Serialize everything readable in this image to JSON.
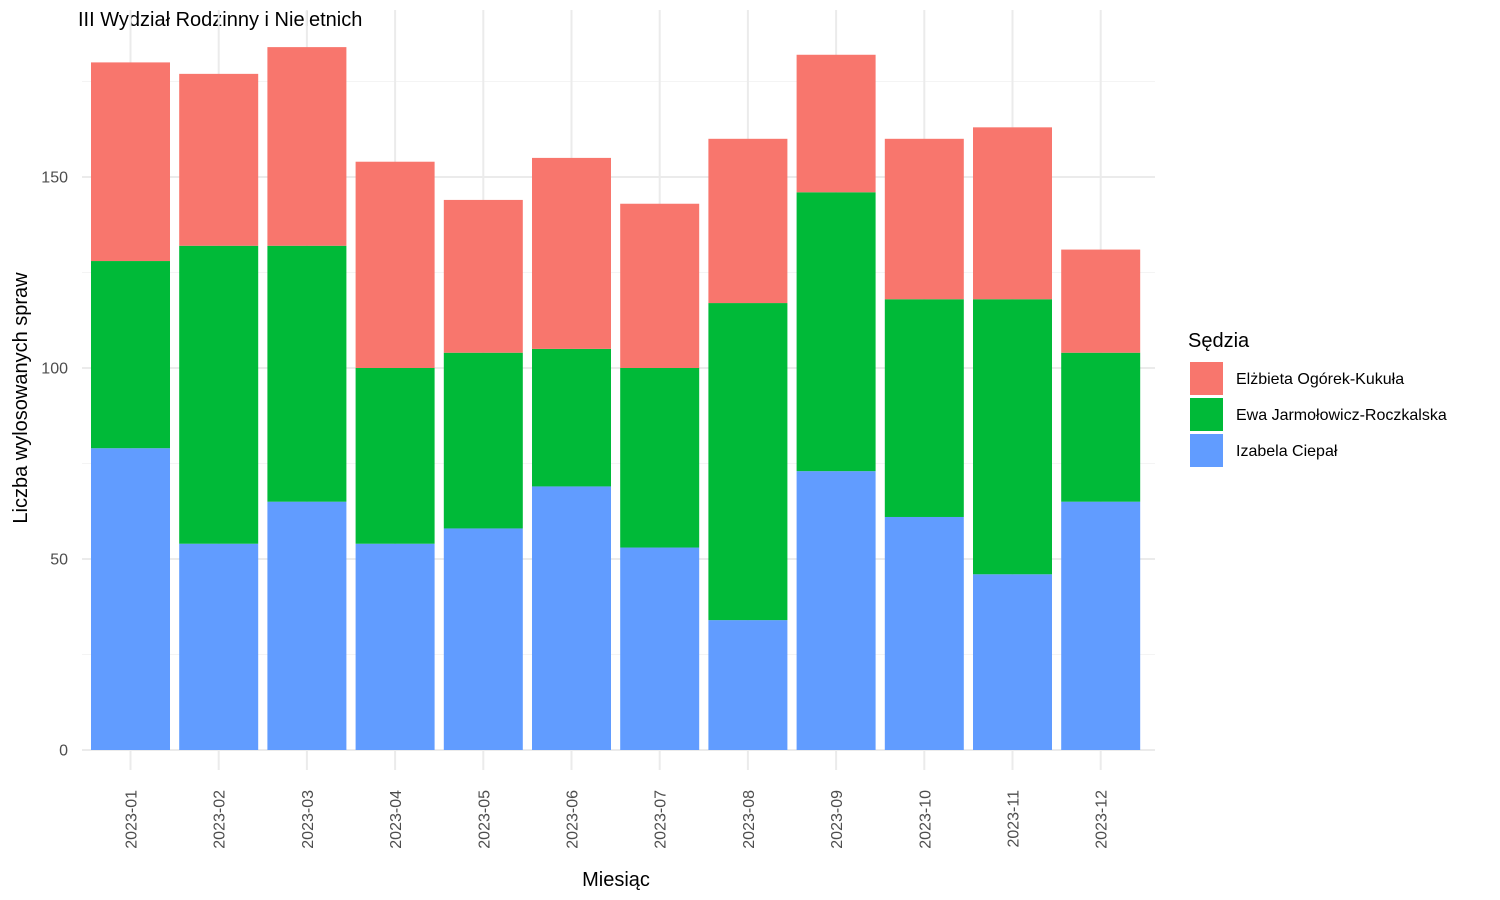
{
  "chart_data": {
    "type": "bar",
    "stacked": true,
    "title": "III Wydział Rodzinny i Nieletnich",
    "xlabel": "Miesiąc",
    "ylabel": "Liczba wylosowanych spraw",
    "ylim": [
      0,
      190
    ],
    "yticks": [
      0,
      50,
      100,
      150
    ],
    "grid": true,
    "legend": {
      "title": "Sędzia",
      "position": "right"
    },
    "categories": [
      "2023-01",
      "2023-02",
      "2023-03",
      "2023-04",
      "2023-05",
      "2023-06",
      "2023-07",
      "2023-08",
      "2023-09",
      "2023-10",
      "2023-11",
      "2023-12"
    ],
    "series": [
      {
        "name": "Elżbieta Ogórek-Kukuła",
        "color": "#F8766D",
        "values": [
          52,
          45,
          52,
          54,
          40,
          50,
          43,
          43,
          36,
          42,
          45,
          27
        ]
      },
      {
        "name": "Ewa Jarmołowicz-Roczkalska",
        "color": "#00BA38",
        "values": [
          49,
          78,
          67,
          46,
          46,
          36,
          47,
          83,
          73,
          57,
          72,
          39
        ]
      },
      {
        "name": "Izabela Ciepał",
        "color": "#619CFF",
        "values": [
          79,
          54,
          65,
          54,
          58,
          69,
          53,
          34,
          73,
          61,
          46,
          65
        ]
      }
    ],
    "stack_order": [
      "Izabela Ciepał",
      "Ewa Jarmołowicz-Roczkalska",
      "Elżbieta Ogórek-Kukuła"
    ]
  }
}
